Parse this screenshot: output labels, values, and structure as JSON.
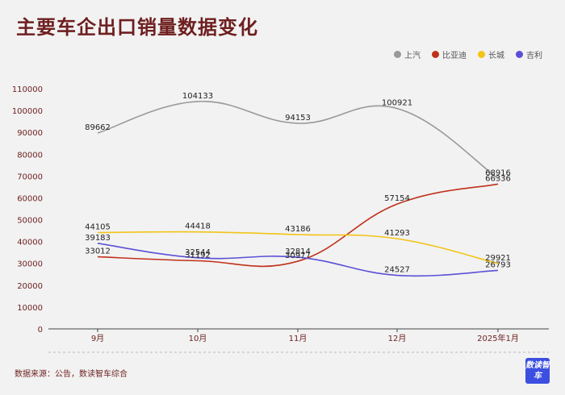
{
  "title": "主要车企出口销量数据变化",
  "source": "数据来源：公告，数读智车综合",
  "logo": "数读智车",
  "chart_data": {
    "type": "line",
    "categories": [
      "9月",
      "10月",
      "11月",
      "12月",
      "2025年1月"
    ],
    "ylim": [
      0,
      110000
    ],
    "yticks": [
      0,
      10000,
      20000,
      30000,
      40000,
      50000,
      60000,
      70000,
      80000,
      90000,
      100000,
      110000
    ],
    "legend_position": "top-right",
    "grid": false,
    "series": [
      {
        "name": "上汽",
        "color": "#999999",
        "values": [
          89662,
          104133,
          94153,
          100921,
          68916
        ]
      },
      {
        "name": "比亚迪",
        "color": "#c0311b",
        "values": [
          33012,
          31192,
          30977,
          57154,
          66336
        ]
      },
      {
        "name": "长城",
        "color": "#f2c417",
        "values": [
          44105,
          44418,
          43186,
          41293,
          29921
        ]
      },
      {
        "name": "吉利",
        "color": "#5b4fd6",
        "values": [
          39183,
          32544,
          32814,
          24527,
          26793
        ]
      }
    ]
  }
}
